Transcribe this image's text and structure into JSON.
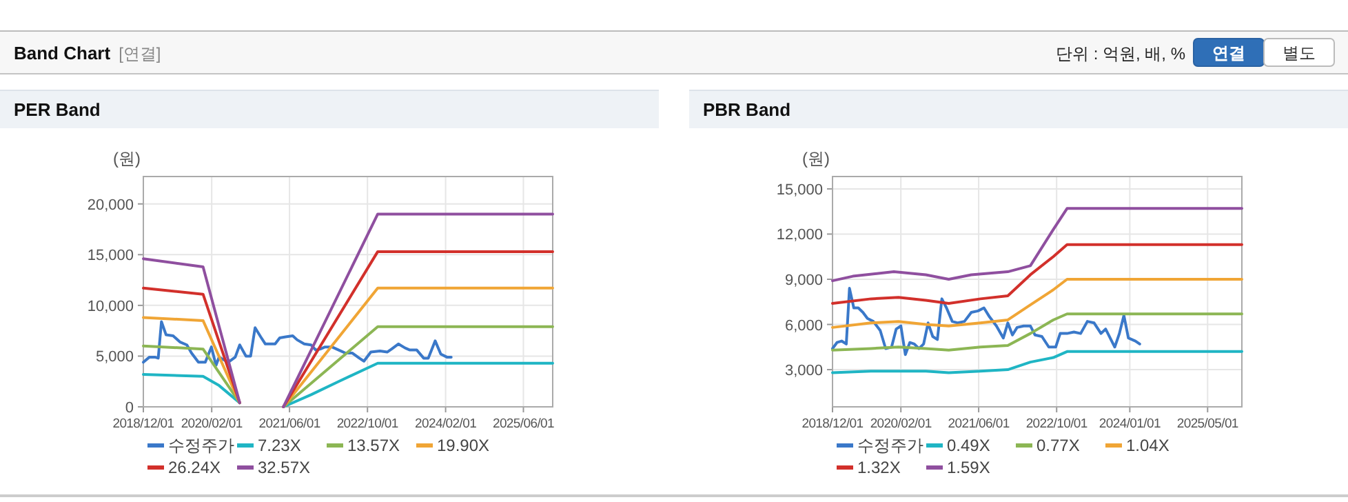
{
  "chart_data": [
    {
      "type": "other",
      "title": "Band Chart",
      "subtitle": "[연결]",
      "annotations": [
        "단위 : 억원, 배, %",
        "연결",
        "별도"
      ]
    },
    {
      "type": "line",
      "title": "PER Band",
      "ylabel": "(원)",
      "grid": true,
      "legend": "bottom",
      "line_style": "solid",
      "xlim": [
        "2018-12-01",
        "2025-12-01"
      ],
      "xticks": [
        {
          "value": "2018-12-01",
          "label": "2018/12/01"
        },
        {
          "value": "2020-02-01",
          "label": "2020/02/01"
        },
        {
          "value": "2021-06-01",
          "label": "2021/06/01"
        },
        {
          "value": "2022-10-01",
          "label": "2022/10/01"
        },
        {
          "value": "2024-02-01",
          "label": "2024/02/01"
        },
        {
          "value": "2025-06-01",
          "label": "2025/06/01"
        }
      ],
      "ylim": [
        0,
        22700
      ],
      "yticks": [
        0,
        {
          "value": 5000,
          "label": "5,000"
        },
        {
          "value": 10000,
          "label": "10,000"
        },
        {
          "value": 15000,
          "label": "15,000"
        },
        {
          "value": 20000,
          "label": "20,000"
        }
      ],
      "series": [
        {
          "name": "수정주가",
          "color": "#3a78c9",
          "x": [
            "2018-12-01",
            "2019-01-08",
            "2019-02-11",
            "2019-03-04",
            "2019-03-24",
            "2019-04-22",
            "2019-06-05",
            "2019-07-17",
            "2019-08-30",
            "2019-09-28",
            "2019-11-10",
            "2019-12-23",
            "2020-01-30",
            "2020-02-28",
            "2020-03-18",
            "2020-05-14",
            "2020-06-27",
            "2020-07-25",
            "2020-09-02",
            "2020-10-01",
            "2020-10-29",
            "2020-12-03",
            "2021-01-01",
            "2021-02-05",
            "2021-03-03",
            "2021-04-01",
            "2021-05-08",
            "2021-06-21",
            "2021-07-19",
            "2021-09-01",
            "2021-10-14",
            "2021-11-12",
            "2021-12-11",
            "2022-01-09",
            "2022-02-21",
            "2022-04-04",
            "2022-05-16",
            "2022-06-29",
            "2022-08-11",
            "2022-09-09",
            "2022-10-22",
            "2022-12-18",
            "2023-02-01",
            "2023-03-01",
            "2023-04-12",
            "2023-05-24",
            "2023-06-23",
            "2023-08-05",
            "2023-09-17",
            "2023-10-16",
            "2023-11-28",
            "2024-01-02",
            "2024-02-09",
            "2024-03-07"
          ],
          "values": [
            4400,
            4900,
            4900,
            4800,
            8400,
            7100,
            7000,
            6400,
            6100,
            5300,
            4400,
            4400,
            5900,
            4100,
            4900,
            4400,
            4900,
            6100,
            5000,
            5000,
            7800,
            6900,
            6200,
            6200,
            6200,
            6800,
            6900,
            7000,
            6600,
            6200,
            6100,
            5600,
            5700,
            5900,
            5900,
            5600,
            5300,
            5300,
            4800,
            4500,
            5400,
            5500,
            5400,
            5700,
            6200,
            5800,
            5600,
            5600,
            4800,
            4800,
            6500,
            5200,
            4900,
            4900
          ]
        },
        {
          "name": "7.23X",
          "color": "#1fb5c4",
          "x": [
            "2018-12-01",
            "2019-12-09",
            "2020-03-18",
            "2020-07-25",
            "2020-12-01",
            "2021-04-24",
            "2021-10-14",
            "2022-04-04",
            "2022-12-04",
            "2025-12-01"
          ],
          "values": [
            3200,
            3000,
            2100,
            400,
            null,
            0,
            1200,
            2500,
            4300,
            4300
          ]
        },
        {
          "name": "13.57X",
          "color": "#8cb654",
          "x": [
            "2018-12-01",
            "2019-12-09",
            "2020-07-25",
            "2020-12-01",
            "2021-04-24",
            "2022-12-04",
            "2025-12-01"
          ],
          "values": [
            6000,
            5700,
            400,
            null,
            0,
            7900,
            7900
          ]
        },
        {
          "name": "19.90X",
          "color": "#f0a535",
          "x": [
            "2018-12-01",
            "2019-12-09",
            "2020-07-25",
            "2020-12-01",
            "2021-04-24",
            "2022-12-04",
            "2025-12-01"
          ],
          "values": [
            8800,
            8500,
            400,
            null,
            0,
            11700,
            11700
          ]
        },
        {
          "name": "26.24X",
          "color": "#d2302b",
          "x": [
            "2018-12-01",
            "2019-12-09",
            "2020-07-25",
            "2020-12-01",
            "2021-04-24",
            "2022-12-04",
            "2025-12-01"
          ],
          "values": [
            11700,
            11100,
            400,
            null,
            0,
            15300,
            15300
          ]
        },
        {
          "name": "32.57X",
          "color": "#8f4f9f",
          "x": [
            "2018-12-01",
            "2019-12-09",
            "2020-07-25",
            "2020-12-01",
            "2021-04-24",
            "2022-12-04",
            "2025-12-01"
          ],
          "values": [
            14600,
            13800,
            400,
            null,
            0,
            19000,
            19000
          ]
        }
      ]
    },
    {
      "type": "line",
      "title": "PBR Band",
      "ylabel": "(원)",
      "grid": true,
      "legend": "bottom",
      "line_style": "solid",
      "xlim": [
        "2018-12-01",
        "2025-12-01"
      ],
      "xticks": [
        {
          "value": "2018-12-01",
          "label": "2018/12/01"
        },
        {
          "value": "2020-02-01",
          "label": "2020/02/01"
        },
        {
          "value": "2021-06-01",
          "label": "2021/06/01"
        },
        {
          "value": "2022-10-01",
          "label": "2022/10/01"
        },
        {
          "value": "2024-01-01",
          "label": "2024/01/01"
        },
        {
          "value": "2025-05-01",
          "label": "2025/05/01"
        }
      ],
      "ylim": [
        530,
        15820
      ],
      "yticks": [
        {
          "value": 3000,
          "label": "3,000"
        },
        {
          "value": 6000,
          "label": "6,000"
        },
        {
          "value": 9000,
          "label": "9,000"
        },
        {
          "value": 12000,
          "label": "12,000"
        },
        {
          "value": 15000,
          "label": "15,000"
        }
      ],
      "series": [
        {
          "name": "수정주가",
          "color": "#3a78c9",
          "x": [
            "2018-12-01",
            "2018-12-29",
            "2019-01-27",
            "2019-02-25",
            "2019-03-17",
            "2019-04-13",
            "2019-05-11",
            "2019-06-09",
            "2019-07-07",
            "2019-08-13",
            "2019-09-25",
            "2019-10-29",
            "2019-12-05",
            "2020-01-03",
            "2020-02-01",
            "2020-02-29",
            "2020-03-28",
            "2020-04-25",
            "2020-05-24",
            "2020-06-22",
            "2020-07-20",
            "2020-08-18",
            "2020-09-16",
            "2020-10-14",
            "2020-11-12",
            "2020-12-18",
            "2021-01-22",
            "2021-03-04",
            "2021-04-16",
            "2021-05-28",
            "2021-07-04",
            "2021-08-08",
            "2021-09-20",
            "2021-11-02",
            "2021-11-30",
            "2021-12-29",
            "2022-01-27",
            "2022-03-09",
            "2022-04-20",
            "2022-05-19",
            "2022-07-01",
            "2022-08-13",
            "2022-09-25",
            "2022-10-23",
            "2022-12-05",
            "2023-01-17",
            "2023-02-28",
            "2023-04-11",
            "2023-05-23",
            "2023-07-05",
            "2023-08-03",
            "2023-09-29",
            "2023-10-28",
            "2023-11-25",
            "2023-12-23",
            "2024-02-05",
            "2024-03-03"
          ],
          "values": [
            4400,
            4800,
            4900,
            4700,
            8400,
            7100,
            7100,
            6800,
            6400,
            6200,
            5600,
            4400,
            4500,
            5700,
            5900,
            4000,
            4800,
            4700,
            4400,
            4700,
            6100,
            5200,
            5000,
            7700,
            7100,
            6200,
            6100,
            6200,
            6800,
            6900,
            7100,
            6500,
            5900,
            5100,
            6100,
            5300,
            5800,
            5900,
            5900,
            5300,
            5200,
            4500,
            4500,
            5400,
            5400,
            5500,
            5400,
            6200,
            6100,
            5400,
            5700,
            4500,
            5400,
            6600,
            5100,
            4900,
            4700
          ]
        },
        {
          "name": "0.49X",
          "color": "#1fb5c4",
          "x": [
            "2018-12-01",
            "2019-07-29",
            "2020-01-17",
            "2020-07-06",
            "2020-11-26",
            "2021-06-12",
            "2021-11-30",
            "2022-04-20",
            "2022-09-10",
            "2022-12-05",
            "2025-12-01"
          ],
          "values": [
            2800,
            2900,
            2900,
            2900,
            2800,
            2900,
            3000,
            3500,
            3800,
            4200,
            4200
          ]
        },
        {
          "name": "0.77X",
          "color": "#8cb654",
          "x": [
            "2018-12-01",
            "2019-07-29",
            "2020-01-17",
            "2020-07-06",
            "2020-11-26",
            "2021-06-12",
            "2021-11-30",
            "2022-04-20",
            "2022-09-10",
            "2022-12-05",
            "2025-12-01"
          ],
          "values": [
            4300,
            4400,
            4500,
            4400,
            4300,
            4500,
            4600,
            5400,
            6300,
            6700,
            6700
          ]
        },
        {
          "name": "1.04X",
          "color": "#f0a535",
          "x": [
            "2018-12-01",
            "2019-07-29",
            "2020-01-17",
            "2020-07-06",
            "2020-11-26",
            "2021-06-12",
            "2021-11-30",
            "2022-04-20",
            "2022-09-10",
            "2022-12-05",
            "2025-12-01"
          ],
          "values": [
            5800,
            6100,
            6200,
            6000,
            5900,
            6100,
            6300,
            7300,
            8300,
            9000,
            9000
          ]
        },
        {
          "name": "1.32X",
          "color": "#d2302b",
          "x": [
            "2018-12-01",
            "2019-07-29",
            "2020-01-17",
            "2020-07-06",
            "2020-11-26",
            "2021-06-12",
            "2021-11-30",
            "2022-04-20",
            "2022-09-10",
            "2022-12-05",
            "2025-12-01"
          ],
          "values": [
            7400,
            7700,
            7800,
            7600,
            7400,
            7700,
            7900,
            9300,
            10500,
            11300,
            11300
          ]
        },
        {
          "name": "1.59X",
          "color": "#8f4f9f",
          "x": [
            "2018-12-01",
            "2019-04-07",
            "2019-12-19",
            "2020-07-06",
            "2020-11-26",
            "2021-04-16",
            "2021-11-30",
            "2022-04-20",
            "2022-09-10",
            "2022-12-05",
            "2025-12-01"
          ],
          "values": [
            8900,
            9200,
            9500,
            9300,
            9000,
            9300,
            9500,
            9900,
            12300,
            13700,
            13700
          ]
        }
      ]
    }
  ]
}
